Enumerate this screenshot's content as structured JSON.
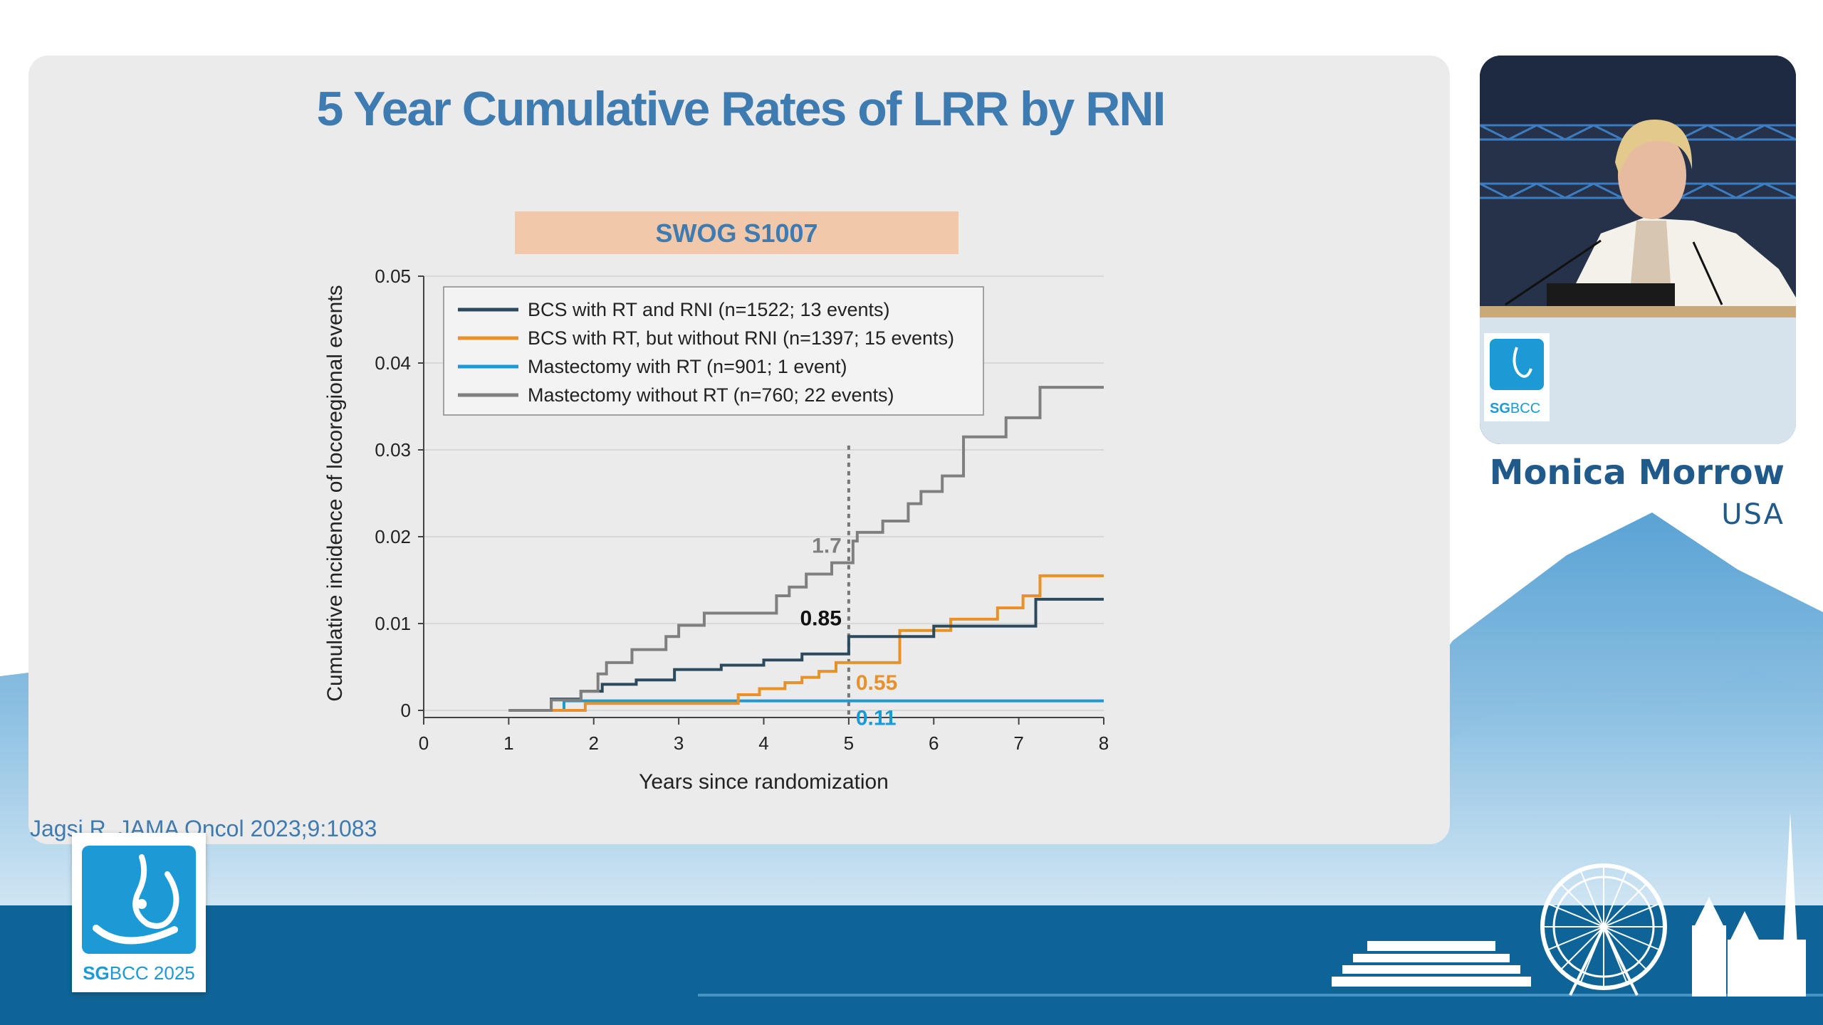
{
  "slide": {
    "title": "5 Year Cumulative Rates of LRR by RNI",
    "study_label": "SWOG S1007",
    "citation": "Jagsi R. JAMA Oncol 2023;9:1083"
  },
  "speaker": {
    "name": "Monica Morrow",
    "country": "USA"
  },
  "conference": {
    "logo_text_bold": "SG",
    "logo_text_rest": "BCC 2025",
    "video_logo_bold": "SG",
    "video_logo_rest": "BCC"
  },
  "colors": {
    "title": "#3e7bb0",
    "band_blue": "#0e6497",
    "accent": "#1b9ad6"
  },
  "chart_data": {
    "type": "line",
    "step": true,
    "xlabel": "Years since randomization",
    "ylabel": "Cumulative incidence of locoregional events",
    "xlim": [
      0,
      8
    ],
    "ylim": [
      0,
      0.05
    ],
    "xticks": [
      "0",
      "1",
      "2",
      "3",
      "4",
      "5",
      "6",
      "7",
      "8"
    ],
    "yticks": [
      "0",
      "0.01",
      "0.02",
      "0.03",
      "0.04",
      "0.05"
    ],
    "grid": "horizontal",
    "legend_position": "top-left",
    "reference_line_x": 5,
    "series": [
      {
        "name": "BCS with RT and RNI (n=1522; 13 events)",
        "color": "#2b4a5e",
        "x": [
          1,
          1.5,
          1.7,
          1.85,
          2.1,
          2.5,
          2.95,
          3.5,
          4.0,
          4.45,
          5.0,
          5.45,
          6.0,
          6.6,
          7.2,
          8
        ],
        "y": [
          0,
          0.0013,
          0.0013,
          0.0022,
          0.003,
          0.0035,
          0.0047,
          0.0052,
          0.0058,
          0.0065,
          0.0085,
          0.0085,
          0.0097,
          0.0097,
          0.0128,
          0.0128
        ]
      },
      {
        "name": "BCS with RT, but without RNI (n=1397; 15 events)",
        "color": "#e8912a",
        "x": [
          1,
          1.7,
          1.9,
          3.5,
          3.7,
          3.95,
          4.25,
          4.45,
          4.65,
          4.85,
          5.0,
          5.6,
          6.2,
          6.75,
          7.05,
          7.25,
          8
        ],
        "y": [
          0,
          0,
          0.0008,
          0.0008,
          0.0018,
          0.0025,
          0.0032,
          0.0038,
          0.0045,
          0.0055,
          0.0055,
          0.0092,
          0.0105,
          0.0118,
          0.0132,
          0.0155,
          0.0155
        ]
      },
      {
        "name": "Mastectomy with RT (n=901; 1 event)",
        "color": "#1b9ad6",
        "x": [
          1,
          1.6,
          1.65,
          5.0,
          8
        ],
        "y": [
          0,
          0,
          0.0011,
          0.0011,
          0.0011
        ]
      },
      {
        "name": "Mastectomy without RT (n=760; 22 events)",
        "color": "#7f7f7f",
        "x": [
          1,
          1.5,
          1.85,
          2.05,
          2.15,
          2.25,
          2.45,
          2.85,
          3.0,
          3.3,
          4.0,
          4.15,
          4.3,
          4.5,
          4.8,
          5.05,
          5.1,
          5.4,
          5.7,
          5.85,
          6.1,
          6.35,
          6.85,
          7.25,
          8
        ],
        "y": [
          0,
          0.0012,
          0.0022,
          0.0042,
          0.0055,
          0.0055,
          0.007,
          0.0085,
          0.0098,
          0.0112,
          0.0112,
          0.0132,
          0.0142,
          0.0157,
          0.017,
          0.0195,
          0.0205,
          0.0218,
          0.0238,
          0.0252,
          0.027,
          0.0315,
          0.0337,
          0.0372,
          0.0372
        ]
      }
    ],
    "annotations": [
      {
        "text": "1.7",
        "x": 5,
        "y": 0.017,
        "color": "#7f7f7f"
      },
      {
        "text": "0.85",
        "x": 5,
        "y": 0.0085,
        "color": "#111111"
      },
      {
        "text": "0.55",
        "x": 5,
        "y": 0.0055,
        "color": "#e8912a"
      },
      {
        "text": "0.11",
        "x": 5,
        "y": 0.0011,
        "color": "#1b9ad6"
      }
    ]
  }
}
